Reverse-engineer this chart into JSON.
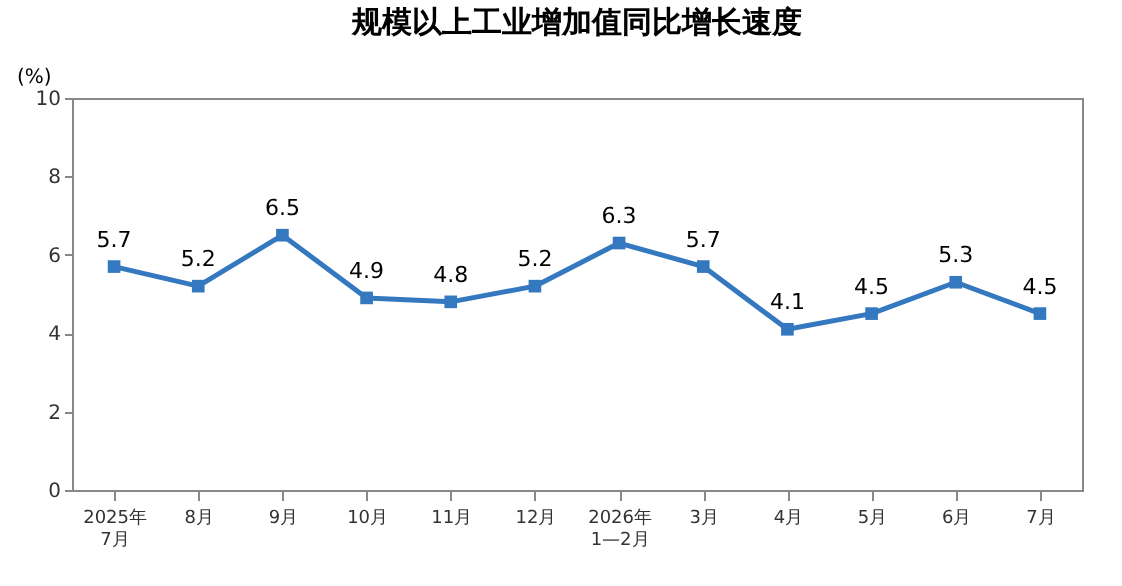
{
  "chart_data": {
    "type": "line",
    "title": "规模以上工业增加值同比增长速度",
    "ylabel": "(%)",
    "categories": [
      "2025年\n7月",
      "8月",
      "9月",
      "10月",
      "11月",
      "12月",
      "2026年\n1—2月",
      "3月",
      "4月",
      "5月",
      "6月",
      "7月"
    ],
    "series": [
      {
        "color": "#3478c0",
        "values": [
          5.7,
          5.2,
          6.5,
          4.9,
          4.8,
          5.2,
          6.3,
          5.7,
          4.1,
          4.5,
          5.3,
          4.5
        ]
      }
    ],
    "ylim": [
      0,
      10
    ],
    "yticks": [
      0,
      2,
      4,
      6,
      8,
      10
    ],
    "data_labels": true,
    "marker": "square",
    "line_style": "solid",
    "grid": false
  }
}
